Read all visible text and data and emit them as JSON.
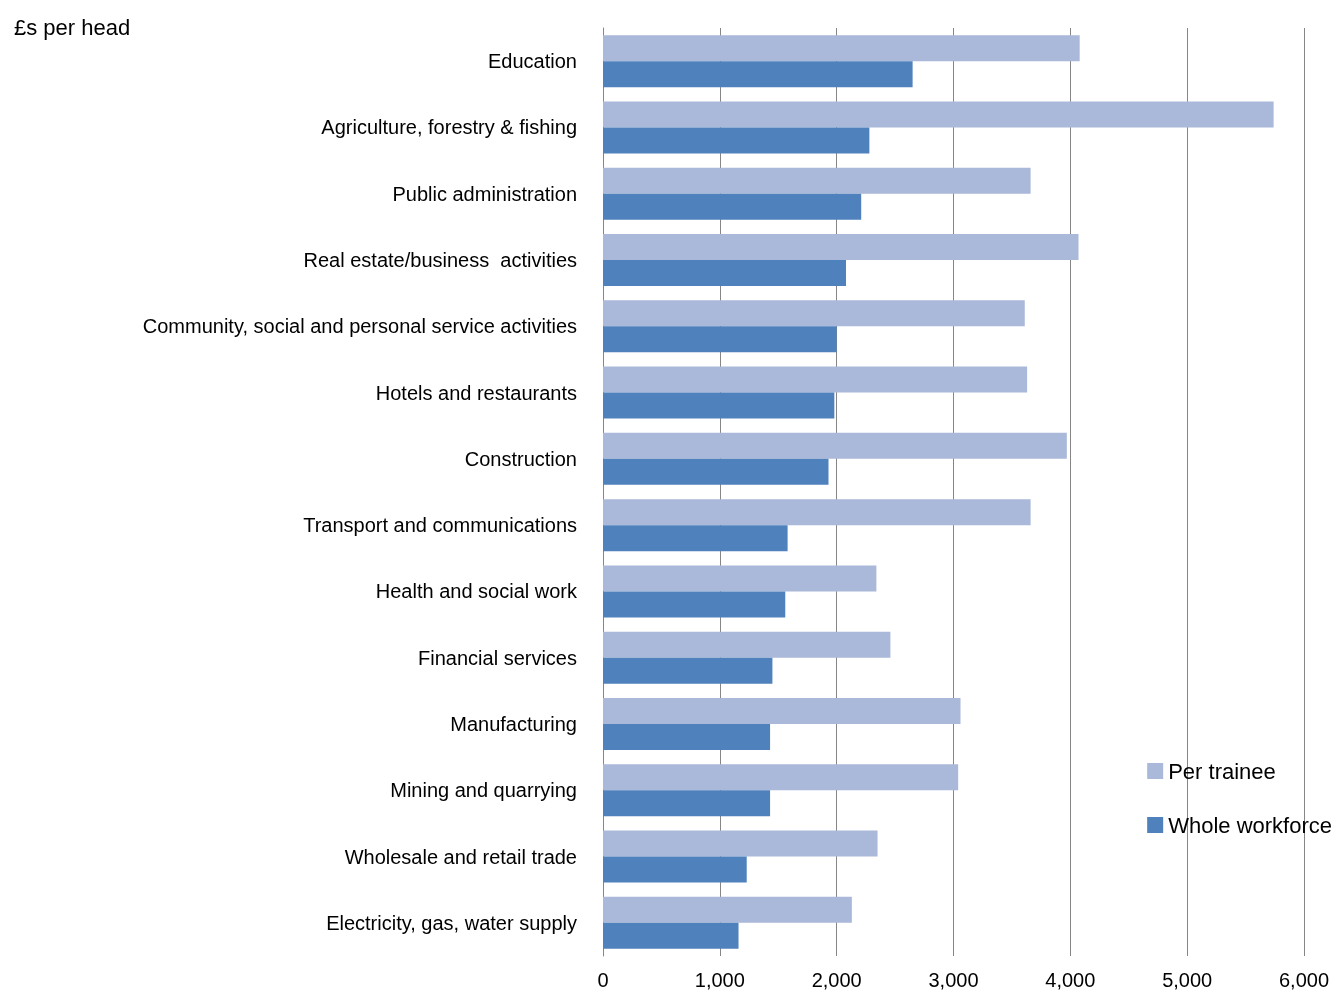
{
  "chart_data": {
    "type": "bar",
    "orientation": "horizontal",
    "xlabel": "£s per head",
    "categories": [
      "Education",
      "Agriculture, forestry & fishing",
      "Public administration",
      "Real estate/business  activities",
      "Community, social and personal service activities",
      "Hotels and restaurants",
      "Construction",
      "Transport and communications",
      "Health and social work",
      "Financial services",
      "Manufacturing",
      "Mining and quarrying",
      "Wholesale and retail trade",
      "Electricity, gas, water supply"
    ],
    "series": [
      {
        "name": "Per trainee",
        "color": "#aab9d9",
        "values": [
          4080,
          5740,
          3660,
          4070,
          3610,
          3630,
          3970,
          3660,
          2340,
          2460,
          3060,
          3040,
          2350,
          2130
        ]
      },
      {
        "name": "Whole workforce",
        "color": "#4f81bd",
        "values": [
          2650,
          2280,
          2210,
          2080,
          2000,
          1980,
          1930,
          1580,
          1560,
          1450,
          1430,
          1430,
          1230,
          1160
        ]
      }
    ],
    "xlim": [
      0,
      6000
    ],
    "xticks": [
      {
        "value": 0,
        "label": "0"
      },
      {
        "value": 1000,
        "label": "1,000"
      },
      {
        "value": 2000,
        "label": "2,000"
      },
      {
        "value": 3000,
        "label": "3,000"
      },
      {
        "value": 4000,
        "label": "4,000"
      },
      {
        "value": 5000,
        "label": "5,000"
      },
      {
        "value": 6000,
        "label": "6,000"
      }
    ],
    "grid": "x",
    "legend": "bottom right"
  }
}
